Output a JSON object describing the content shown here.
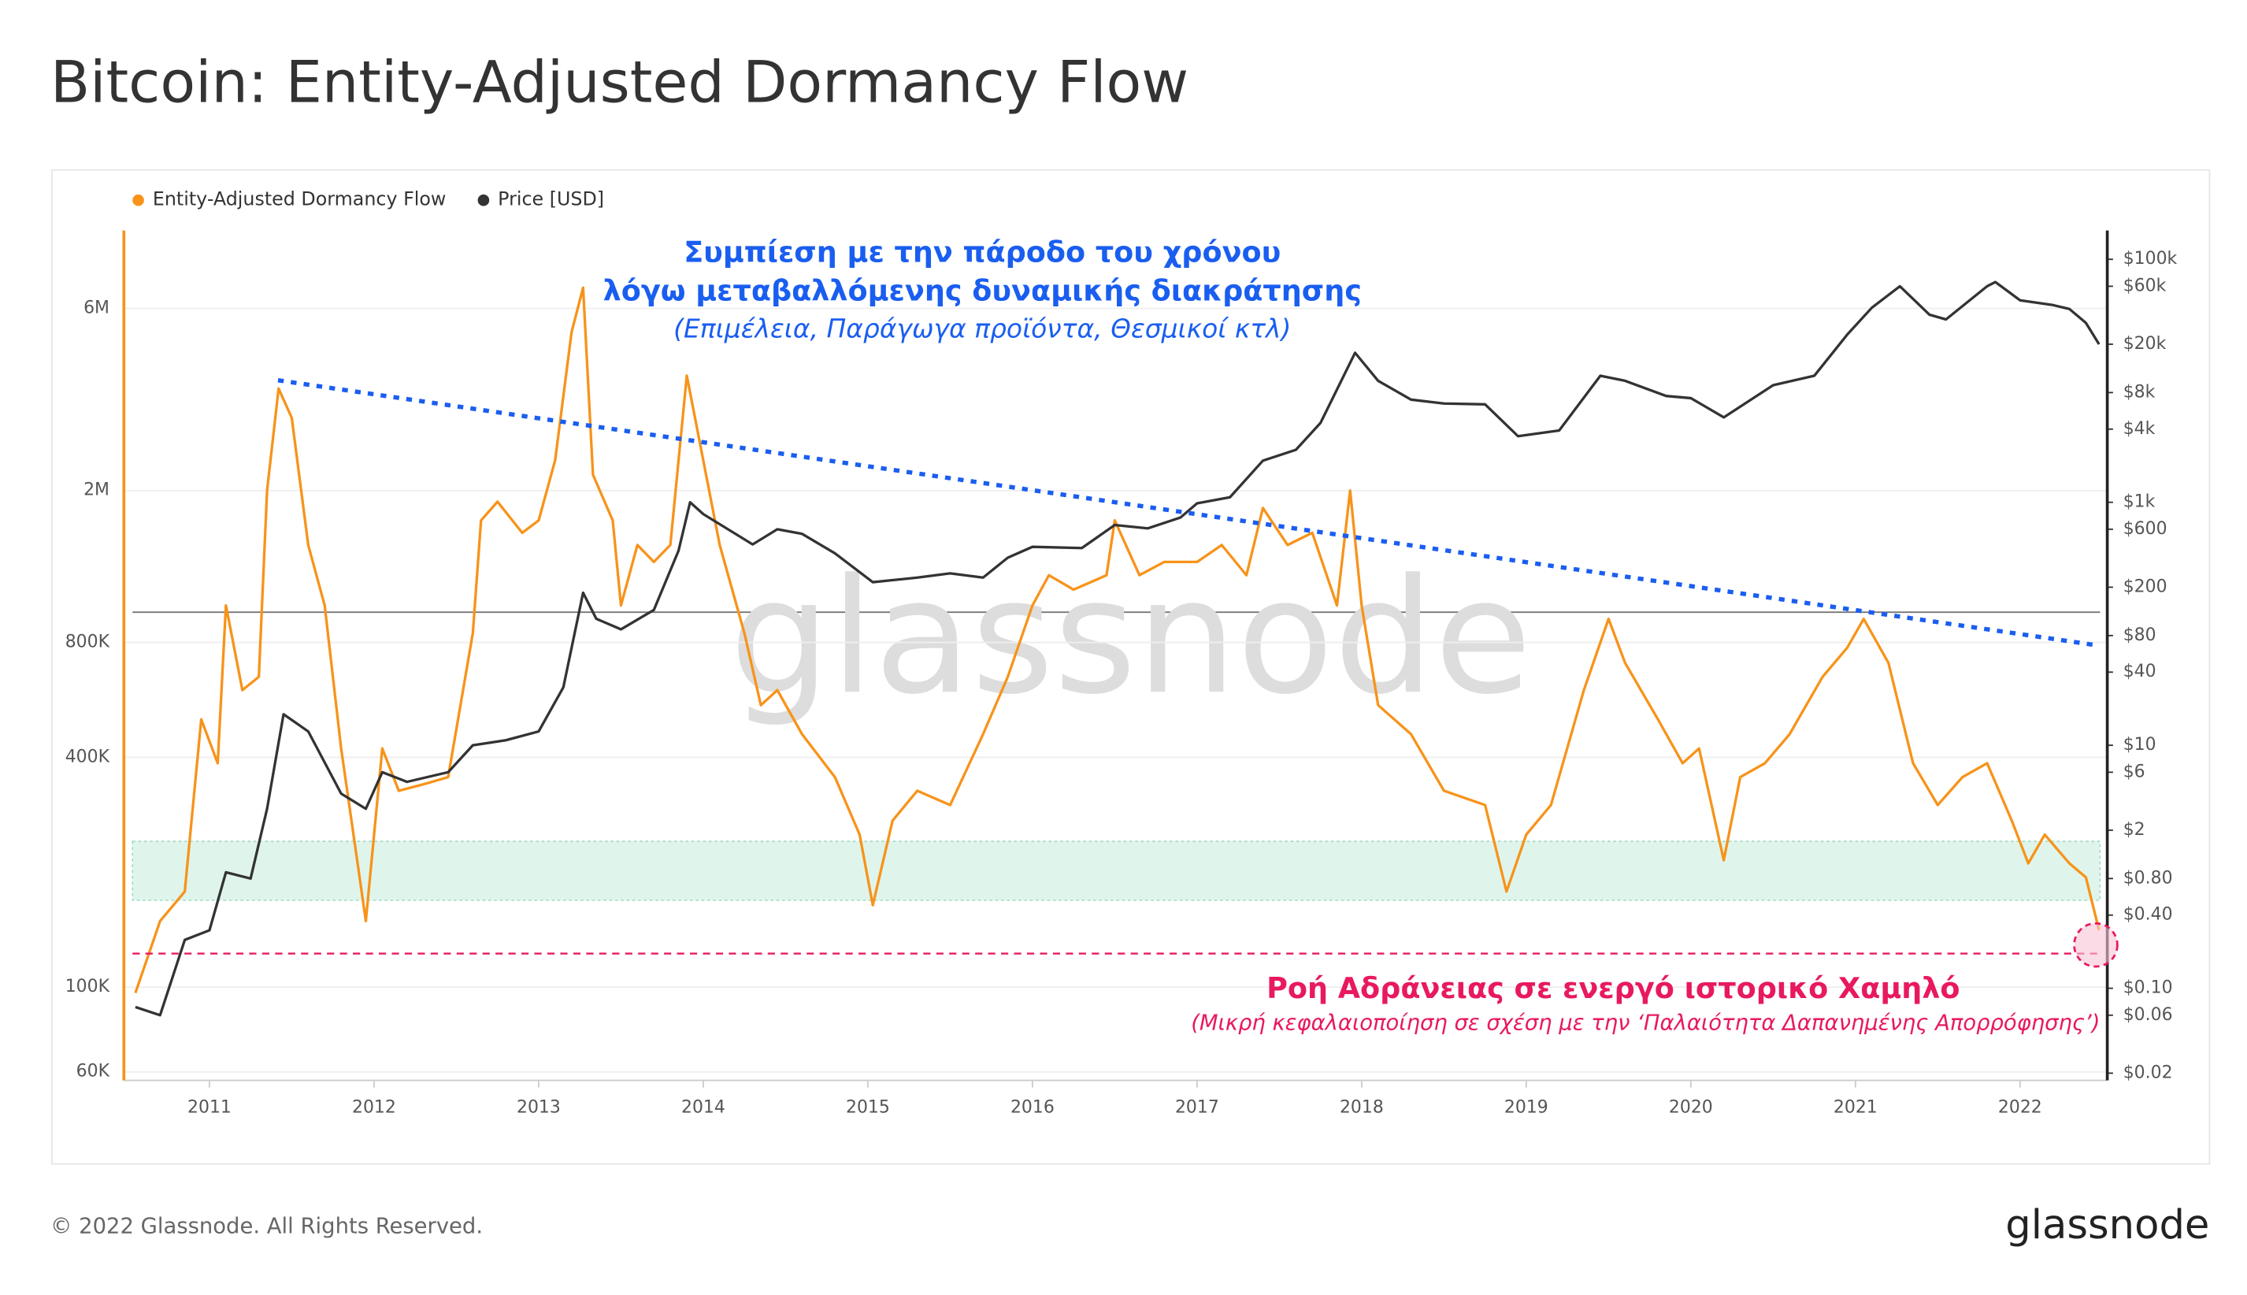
{
  "chart_data": {
    "type": "line",
    "title": "Bitcoin: Entity-Adjusted Dormancy Flow",
    "log_scale": true,
    "y2_log_scale": true,
    "grid": true,
    "legend": "top-left",
    "xlim": [
      2010.48,
      2022.53
    ],
    "xticks": [
      2011,
      2012,
      2013,
      2014,
      2015,
      2016,
      2017,
      2018,
      2019,
      2020,
      2021,
      2022
    ],
    "ylim": [
      57000,
      9600000
    ],
    "yticks": [
      {
        "value": 60000,
        "label": "60K"
      },
      {
        "value": 100000,
        "label": "100K"
      },
      {
        "value": 400000,
        "label": "400K"
      },
      {
        "value": 800000,
        "label": "800K"
      },
      {
        "value": 2000000,
        "label": "2M"
      },
      {
        "value": 6000000,
        "label": "6M"
      }
    ],
    "y2lim": [
      0.01745,
      172700
    ],
    "y2ticks": [
      {
        "value": 100000,
        "label": "$100k"
      },
      {
        "value": 60000,
        "label": "$60k"
      },
      {
        "value": 20000,
        "label": "$20k"
      },
      {
        "value": 8000,
        "label": "$8k"
      },
      {
        "value": 4000,
        "label": "$4k"
      },
      {
        "value": 1000,
        "label": "$1k"
      },
      {
        "value": 600,
        "label": "$600"
      },
      {
        "value": 200,
        "label": "$200"
      },
      {
        "value": 80,
        "label": "$80"
      },
      {
        "value": 40,
        "label": "$40"
      },
      {
        "value": 10,
        "label": "$10"
      },
      {
        "value": 6,
        "label": "$6"
      },
      {
        "value": 2,
        "label": "$2"
      },
      {
        "value": 0.8,
        "label": "$0.80"
      },
      {
        "value": 0.4,
        "label": "$0.40"
      },
      {
        "value": 0.1,
        "label": "$0.10"
      },
      {
        "value": 0.06,
        "label": "$0.06"
      },
      {
        "value": 0.02,
        "label": "$0.02"
      }
    ],
    "series": [
      {
        "name": "Entity-Adjusted Dormancy Flow",
        "color": "#f7931a",
        "axis": "y",
        "x": [
          2010.55,
          2010.7,
          2010.85,
          2010.95,
          2011.05,
          2011.1,
          2011.2,
          2011.3,
          2011.35,
          2011.42,
          2011.5,
          2011.6,
          2011.7,
          2011.8,
          2011.9,
          2011.95,
          2012.05,
          2012.15,
          2012.3,
          2012.45,
          2012.6,
          2012.65,
          2012.75,
          2012.9,
          2013.0,
          2013.1,
          2013.2,
          2013.27,
          2013.33,
          2013.45,
          2013.5,
          2013.6,
          2013.7,
          2013.8,
          2013.9,
          2014.0,
          2014.1,
          2014.25,
          2014.35,
          2014.45,
          2014.6,
          2014.8,
          2014.95,
          2015.03,
          2015.15,
          2015.3,
          2015.5,
          2015.7,
          2015.85,
          2016.0,
          2016.1,
          2016.25,
          2016.45,
          2016.5,
          2016.65,
          2016.8,
          2017.0,
          2017.15,
          2017.3,
          2017.4,
          2017.55,
          2017.7,
          2017.85,
          2017.93,
          2018.0,
          2018.1,
          2018.3,
          2018.5,
          2018.75,
          2018.88,
          2019.0,
          2019.15,
          2019.35,
          2019.5,
          2019.6,
          2019.8,
          2019.95,
          2020.05,
          2020.2,
          2020.3,
          2020.45,
          2020.6,
          2020.8,
          2020.95,
          2021.05,
          2021.2,
          2021.35,
          2021.5,
          2021.65,
          2021.8,
          2021.95,
          2022.05,
          2022.15,
          2022.3,
          2022.4,
          2022.48
        ],
        "values": [
          96600,
          149000,
          178000,
          503000,
          386000,
          1000000,
          600000,
          650000,
          2000000,
          3700000,
          3100000,
          1440000,
          1000000,
          422000,
          211000,
          149000,
          422000,
          327000,
          340000,
          355000,
          846000,
          1670000,
          1870000,
          1550000,
          1670000,
          2400000,
          5200000,
          6800000,
          2200000,
          1670000,
          1000000,
          1440000,
          1300000,
          1440000,
          4000000,
          2400000,
          1440000,
          846000,
          548000,
          600000,
          460000,
          355000,
          251000,
          164000,
          273000,
          327000,
          300000,
          460000,
          650000,
          1000000,
          1200000,
          1100000,
          1200000,
          1670000,
          1200000,
          1300000,
          1300000,
          1440000,
          1200000,
          1800000,
          1440000,
          1550000,
          1000000,
          2000000,
          1000000,
          548000,
          460000,
          327000,
          300000,
          178000,
          251000,
          300000,
          600000,
          922000,
          708000,
          503000,
          386000,
          422000,
          215000,
          355000,
          386000,
          460000,
          650000,
          775000,
          922000,
          708000,
          386000,
          300000,
          355000,
          386000,
          273000,
          211000,
          251000,
          211000,
          194000,
          141000
        ]
      },
      {
        "name": "Price [USD]",
        "color": "#333333",
        "axis": "y2",
        "x": [
          2010.55,
          2010.7,
          2010.85,
          2011.0,
          2011.1,
          2011.25,
          2011.35,
          2011.45,
          2011.6,
          2011.8,
          2011.95,
          2012.05,
          2012.2,
          2012.45,
          2012.6,
          2012.8,
          2013.0,
          2013.15,
          2013.27,
          2013.35,
          2013.5,
          2013.7,
          2013.85,
          2013.92,
          2014.0,
          2014.15,
          2014.3,
          2014.45,
          2014.6,
          2014.8,
          2015.03,
          2015.3,
          2015.5,
          2015.7,
          2015.85,
          2016.0,
          2016.3,
          2016.5,
          2016.7,
          2016.9,
          2017.0,
          2017.2,
          2017.4,
          2017.6,
          2017.75,
          2017.96,
          2018.1,
          2018.3,
          2018.5,
          2018.75,
          2018.95,
          2019.2,
          2019.45,
          2019.6,
          2019.85,
          2020.0,
          2020.2,
          2020.5,
          2020.75,
          2020.95,
          2021.1,
          2021.27,
          2021.45,
          2021.55,
          2021.8,
          2021.85,
          2022.0,
          2022.2,
          2022.3,
          2022.4,
          2022.48
        ],
        "values": [
          0.07,
          0.06,
          0.25,
          0.3,
          0.9,
          0.8,
          3,
          18,
          13,
          4,
          3,
          6,
          5,
          6,
          10,
          11,
          13,
          30,
          180,
          110,
          90,
          130,
          400,
          1000,
          800,
          600,
          450,
          600,
          550,
          380,
          220,
          240,
          260,
          240,
          350,
          430,
          420,
          650,
          610,
          750,
          980,
          1100,
          2200,
          2700,
          4500,
          17000,
          10000,
          7000,
          6500,
          6400,
          3500,
          3900,
          11000,
          10000,
          7500,
          7200,
          5000,
          9200,
          11000,
          24000,
          40000,
          60000,
          35000,
          32000,
          60000,
          65000,
          46000,
          42000,
          39000,
          30000,
          20000
        ]
      }
    ],
    "annotations": [
      "Συμπίεση με την πάροδο του χρόνου",
      "λόγω μεταβαλλόμενης δυναμικής διακράτησης",
      "(Επιμέλεια, Παράγωγα προϊόντα, Θεσμικοί κτλ)",
      "Ροή Αδράνειας σε ενεργό ιστορικό Χαμηλό",
      "(Μικρή κεφαλαιοποίηση σε σχέση με την ‘Παλαιότητα Δαπανημένης Απορρόφησης’)"
    ],
    "watermark": "glassnode"
  },
  "footer": {
    "copyright": "© 2022 Glassnode. All Rights Reserved.",
    "logo": "glassnode"
  }
}
